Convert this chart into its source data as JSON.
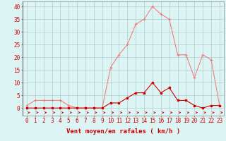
{
  "x": [
    0,
    1,
    2,
    3,
    4,
    5,
    6,
    7,
    8,
    9,
    10,
    11,
    12,
    13,
    14,
    15,
    16,
    17,
    18,
    19,
    20,
    21,
    22,
    23
  ],
  "y_line1": [
    1,
    3,
    3,
    3,
    3,
    1,
    0,
    0,
    0,
    0,
    16,
    21,
    25,
    33,
    35,
    40,
    37,
    35,
    21,
    21,
    12,
    21,
    19,
    1
  ],
  "y_line2": [
    0,
    0,
    0,
    0,
    0,
    0,
    0,
    0,
    0,
    0,
    2,
    2,
    4,
    6,
    6,
    10,
    6,
    8,
    3,
    3,
    1,
    0,
    1,
    1
  ],
  "background_color": "#ddf4f4",
  "grid_color": "#b0cccc",
  "line1_color": "#f08080",
  "line2_color": "#cc0000",
  "arrow_color": "#cc0000",
  "xlabel": "Vent moyen/en rafales ( km/h )",
  "ylim": [
    -3,
    42
  ],
  "yticks": [
    0,
    5,
    10,
    15,
    20,
    25,
    30,
    35,
    40
  ],
  "tick_fontsize": 5.5,
  "label_fontsize": 6.5
}
